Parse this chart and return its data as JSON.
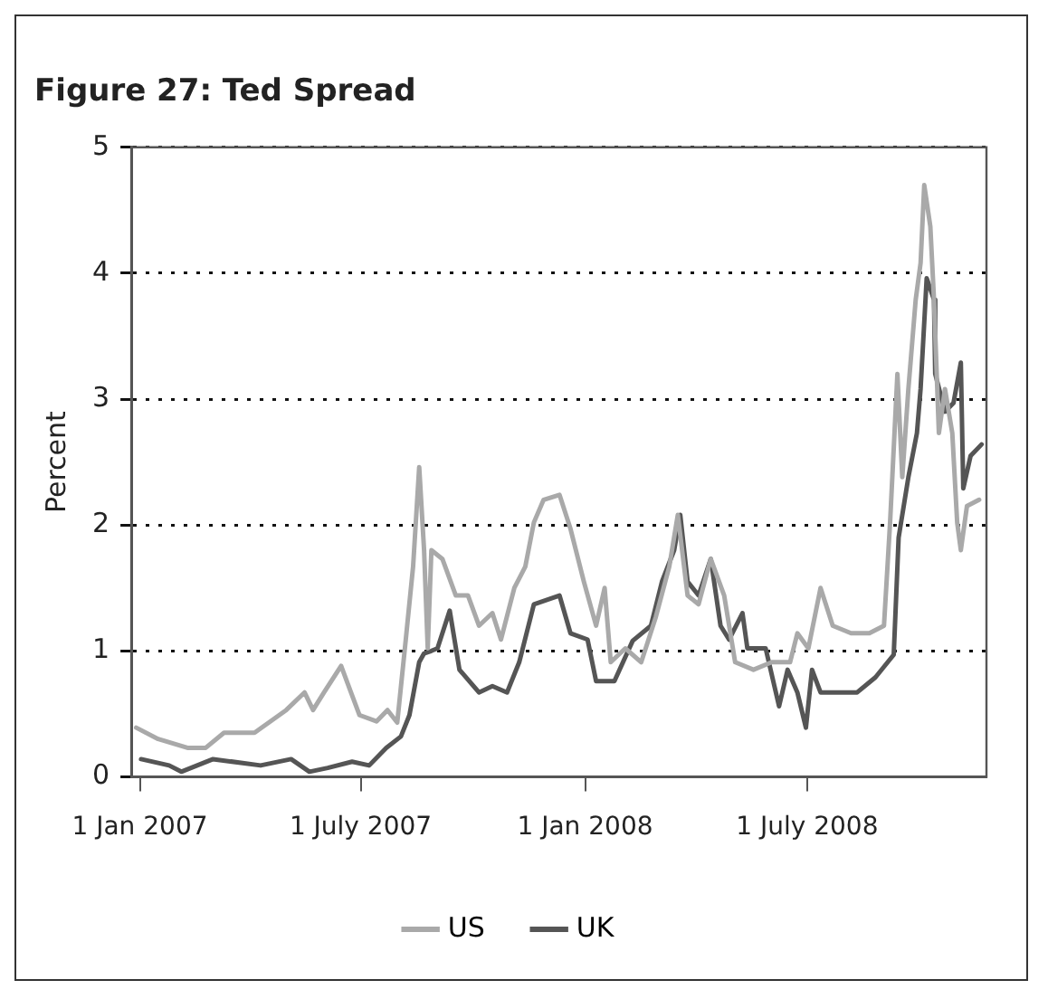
{
  "chart_data": {
    "type": "line",
    "title": "Figure 27: Ted Spread",
    "ylabel": "Percent",
    "xlim": [
      "2006-12-25",
      "2008-11-25"
    ],
    "xticks": [
      {
        "value": "2007-01-01",
        "label": "1 Jan 2007"
      },
      {
        "value": "2007-07-01",
        "label": "1 July 2007"
      },
      {
        "value": "2008-01-01",
        "label": "1 Jan 2008"
      },
      {
        "value": "2008-07-01",
        "label": "1 July 2008"
      }
    ],
    "ylim": [
      0,
      5
    ],
    "yticks": [
      0,
      1,
      2,
      3,
      4,
      5
    ],
    "grid": "y",
    "legend": "bottom",
    "marker": "none",
    "line_style": "solid",
    "series": [
      {
        "name": "US",
        "color": "#a9a9a9",
        "x": [
          "2006-12-29",
          "2007-01-16",
          "2007-02-09",
          "2007-02-24",
          "2007-03-11",
          "2007-04-05",
          "2007-05-01",
          "2007-05-16",
          "2007-05-23",
          "2007-06-01",
          "2007-06-15",
          "2007-06-30",
          "2007-07-14",
          "2007-07-23",
          "2007-07-31",
          "2007-08-07",
          "2007-08-13",
          "2007-08-18",
          "2007-08-22",
          "2007-08-25",
          "2007-08-28",
          "2007-09-06",
          "2007-09-17",
          "2007-09-27",
          "2007-10-06",
          "2007-10-17",
          "2007-10-24",
          "2007-11-04",
          "2007-11-13",
          "2007-11-20",
          "2007-11-28",
          "2007-12-11",
          "2007-12-20",
          "2007-12-31",
          "2008-01-10",
          "2008-01-17",
          "2008-01-22",
          "2008-02-03",
          "2008-02-16",
          "2008-02-28",
          "2008-03-10",
          "2008-03-17",
          "2008-03-25",
          "2008-04-03",
          "2008-04-13",
          "2008-04-24",
          "2008-05-03",
          "2008-05-18",
          "2008-06-02",
          "2008-06-17",
          "2008-06-23",
          "2008-07-02",
          "2008-07-12",
          "2008-07-22",
          "2008-08-06",
          "2008-08-21",
          "2008-09-02",
          "2008-09-07",
          "2008-09-13",
          "2008-09-17",
          "2008-09-22",
          "2008-09-28",
          "2008-10-02",
          "2008-10-05",
          "2008-10-10",
          "2008-10-13",
          "2008-10-17",
          "2008-10-22",
          "2008-10-28",
          "2008-11-01",
          "2008-11-04",
          "2008-11-09",
          "2008-11-19"
        ],
        "values": [
          0.39,
          0.3,
          0.23,
          0.23,
          0.35,
          0.35,
          0.53,
          0.67,
          0.53,
          0.67,
          0.88,
          0.49,
          0.44,
          0.53,
          0.43,
          1.09,
          1.67,
          2.46,
          1.8,
          1.02,
          1.8,
          1.73,
          1.44,
          1.44,
          1.2,
          1.3,
          1.09,
          1.5,
          1.67,
          2.02,
          2.2,
          2.24,
          1.97,
          1.55,
          1.2,
          1.5,
          0.91,
          1.02,
          0.91,
          1.27,
          1.67,
          2.08,
          1.44,
          1.37,
          1.73,
          1.44,
          0.91,
          0.85,
          0.91,
          0.91,
          1.14,
          1.02,
          1.5,
          1.2,
          1.14,
          1.14,
          1.2,
          2.02,
          3.2,
          2.38,
          3.08,
          3.79,
          4.08,
          4.7,
          4.37,
          3.79,
          2.73,
          3.08,
          2.73,
          2.02,
          1.8,
          2.15,
          2.2
        ]
      },
      {
        "name": "UK",
        "color": "#555555",
        "x": [
          "2007-01-02",
          "2007-01-25",
          "2007-02-04",
          "2007-03-02",
          "2007-04-10",
          "2007-05-05",
          "2007-05-20",
          "2007-06-04",
          "2007-06-24",
          "2007-07-08",
          "2007-07-22",
          "2007-08-03",
          "2007-08-10",
          "2007-08-18",
          "2007-08-22",
          "2007-08-28",
          "2007-09-02",
          "2007-09-12",
          "2007-09-20",
          "2007-10-06",
          "2007-10-17",
          "2007-10-29",
          "2007-11-08",
          "2007-11-20",
          "2007-12-11",
          "2007-12-20",
          "2008-01-03",
          "2008-01-10",
          "2008-01-25",
          "2008-02-09",
          "2008-02-24",
          "2008-03-04",
          "2008-03-14",
          "2008-03-19",
          "2008-03-25",
          "2008-04-03",
          "2008-04-13",
          "2008-04-21",
          "2008-04-28",
          "2008-05-09",
          "2008-05-13",
          "2008-05-28",
          "2008-06-08",
          "2008-06-15",
          "2008-06-23",
          "2008-06-30",
          "2008-07-05",
          "2008-07-12",
          "2008-07-27",
          "2008-08-11",
          "2008-08-26",
          "2008-09-10",
          "2008-09-14",
          "2008-09-22",
          "2008-09-29",
          "2008-10-02",
          "2008-10-07",
          "2008-10-13",
          "2008-10-14",
          "2008-10-22",
          "2008-10-29",
          "2008-11-04",
          "2008-11-06",
          "2008-11-12",
          "2008-11-21"
        ],
        "values": [
          0.14,
          0.09,
          0.04,
          0.14,
          0.09,
          0.14,
          0.04,
          0.07,
          0.12,
          0.09,
          0.23,
          0.32,
          0.49,
          0.91,
          0.98,
          1.0,
          1.02,
          1.32,
          0.85,
          0.67,
          0.72,
          0.67,
          0.91,
          1.37,
          1.44,
          1.14,
          1.09,
          0.76,
          0.76,
          1.08,
          1.2,
          1.55,
          1.8,
          2.08,
          1.55,
          1.44,
          1.73,
          1.2,
          1.09,
          1.3,
          1.02,
          1.02,
          0.56,
          0.85,
          0.67,
          0.39,
          0.85,
          0.67,
          0.67,
          0.67,
          0.79,
          0.97,
          1.9,
          2.38,
          2.73,
          3.08,
          3.96,
          3.79,
          3.2,
          2.9,
          2.97,
          3.29,
          2.29,
          2.55,
          2.64
        ]
      }
    ]
  }
}
